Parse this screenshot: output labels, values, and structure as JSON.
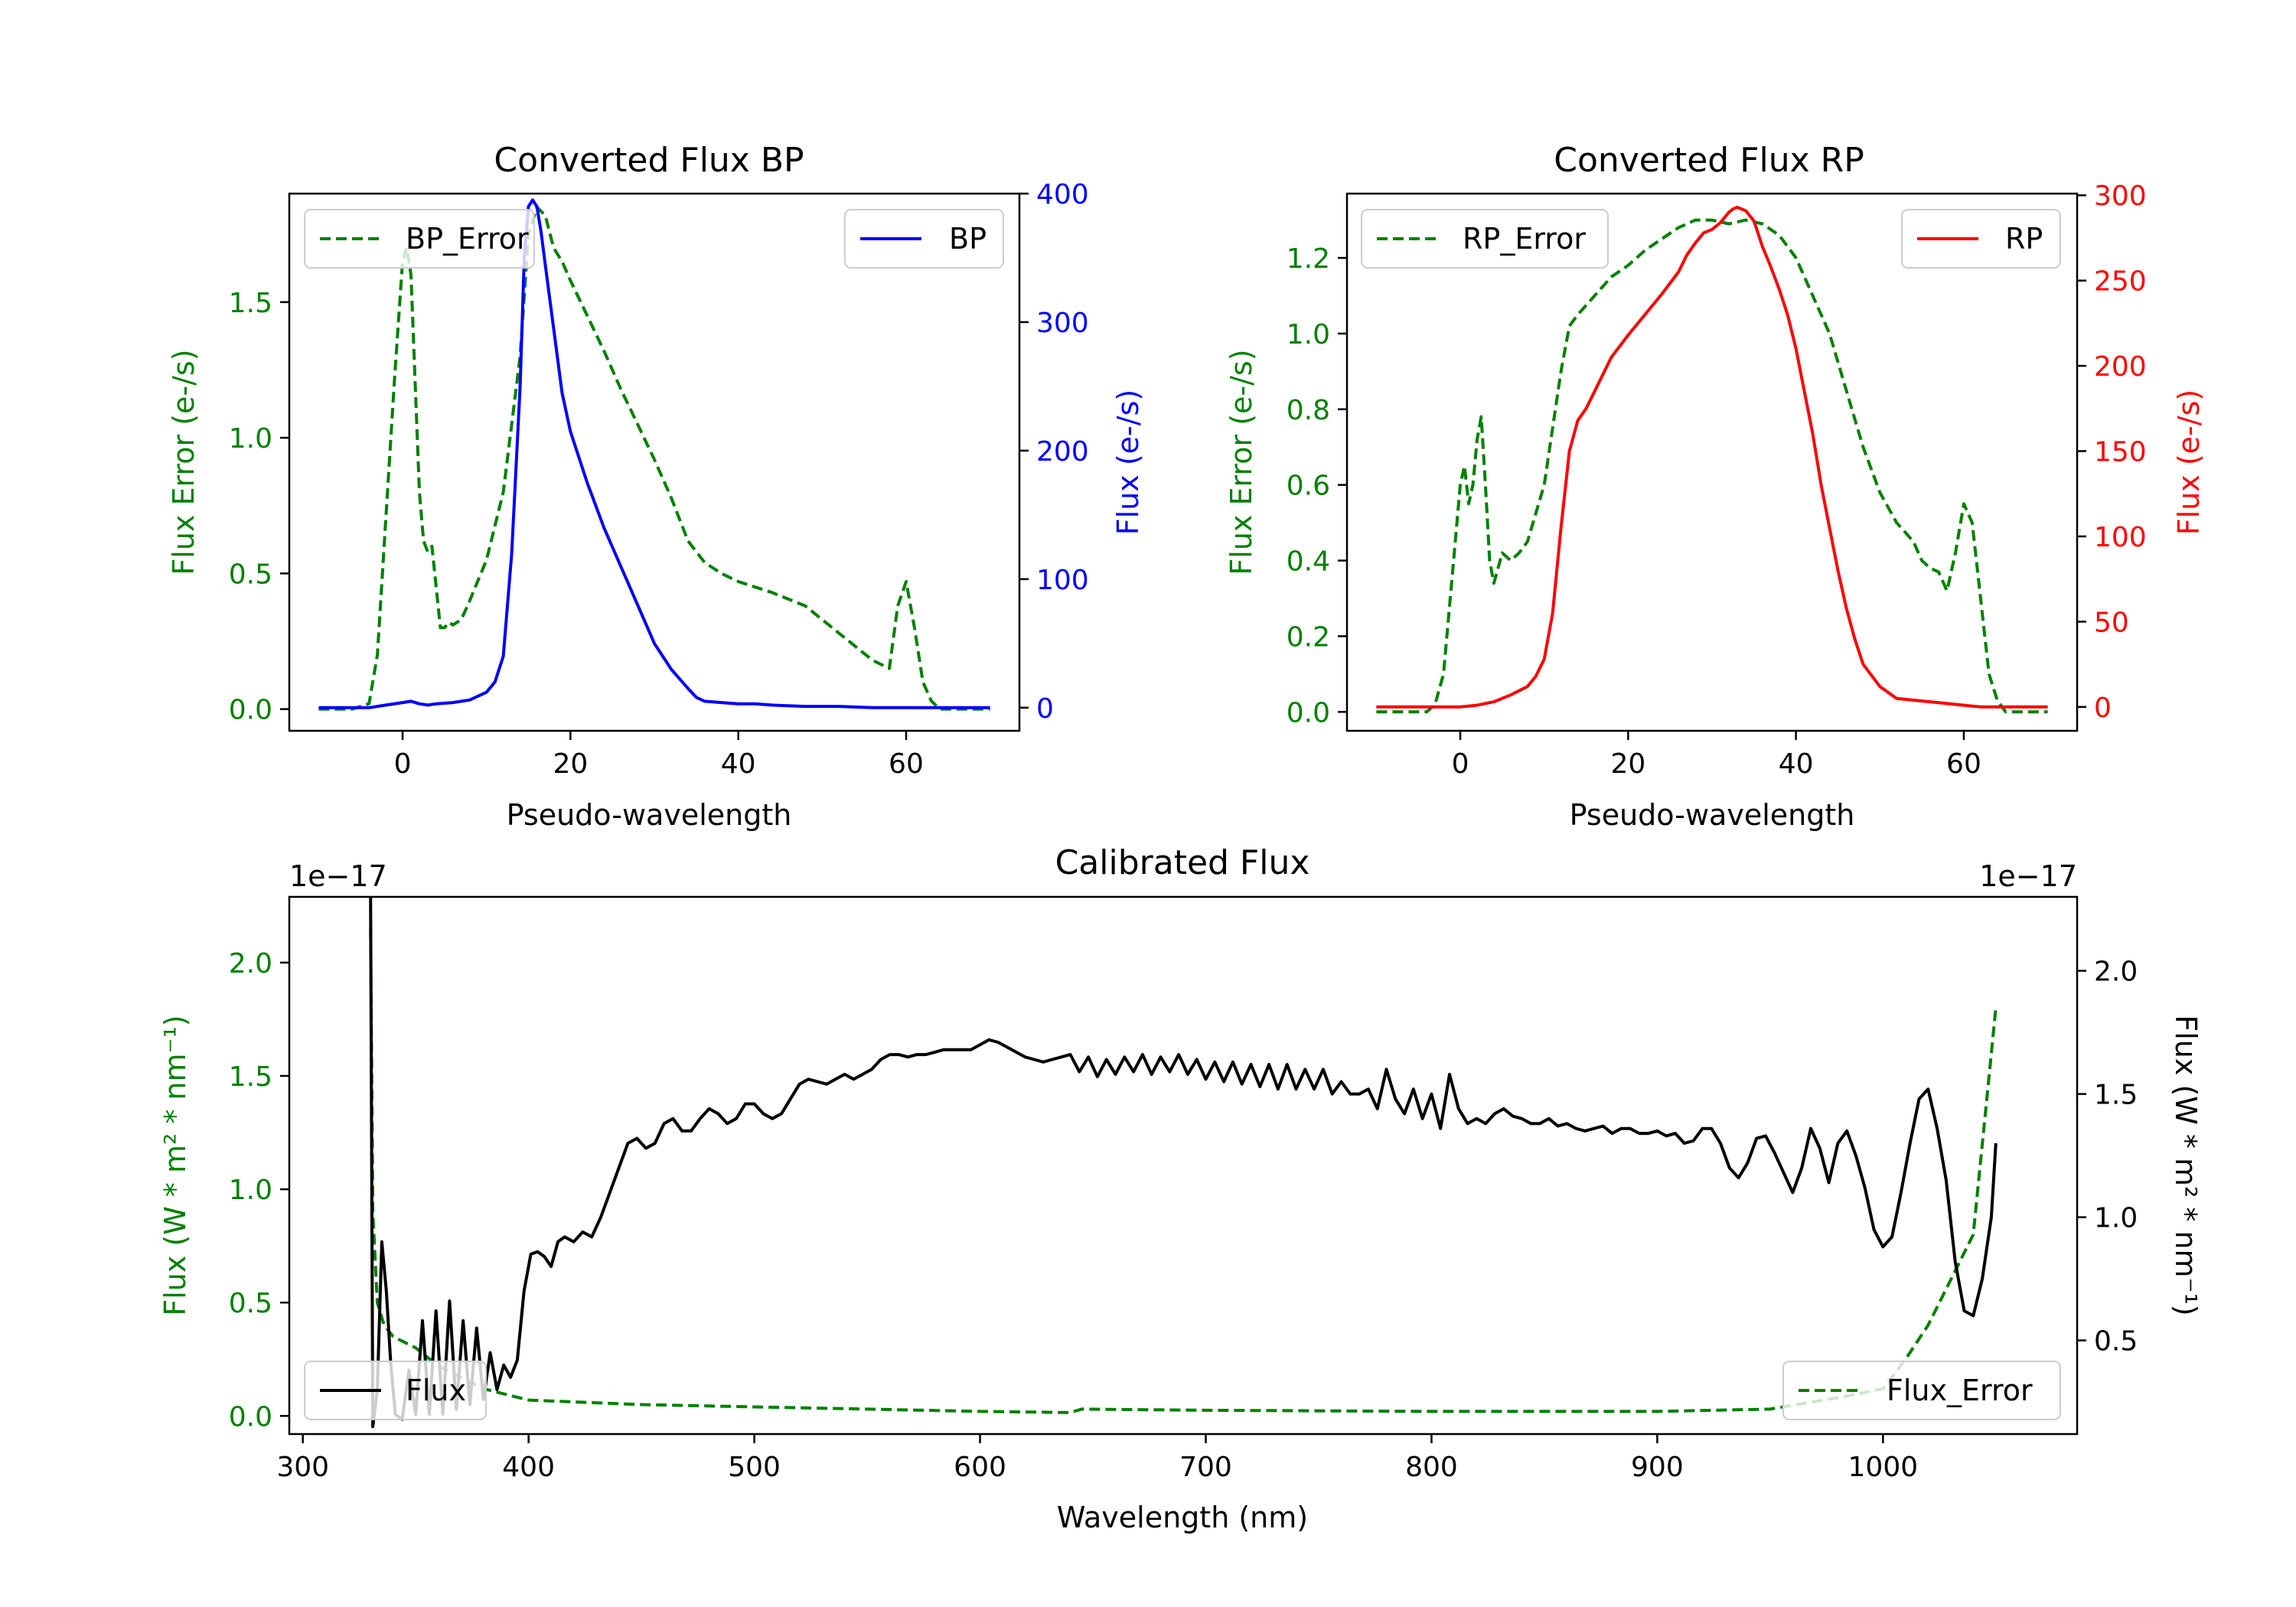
{
  "chart_data": [
    {
      "id": "bp",
      "type": "line",
      "title": "Converted Flux BP",
      "xlabel": "Pseudo-wavelength",
      "ylabel_left": "Flux Error (e-/s)",
      "ylabel_right": "Flux (e-/s)",
      "xlim": [
        -13.5,
        73.5
      ],
      "ylim_left": [
        -0.08,
        1.9
      ],
      "ylim_right": [
        -18,
        400
      ],
      "xticks": [
        0,
        20,
        40,
        60
      ],
      "yticks_left": [
        0.0,
        0.5,
        1.0,
        1.5
      ],
      "yticks_left_labels": [
        "0.0",
        "0.5",
        "1.0",
        "1.5"
      ],
      "yticks_right": [
        0,
        100,
        200,
        300,
        400
      ],
      "yticks_right_labels": [
        "0",
        "100",
        "200",
        "300",
        "400"
      ],
      "colors": {
        "left_axis": "#008000",
        "right_axis": "#0000ff"
      },
      "series": [
        {
          "name": "BP_Error",
          "axis": "left",
          "color": "#008000",
          "dash": true,
          "legend": "top-left",
          "x": [
            -10,
            -6,
            -4,
            -3,
            -2,
            -1,
            0,
            0.5,
            1,
            1.5,
            2,
            2.5,
            3,
            3.5,
            4,
            4.5,
            5,
            5.5,
            6,
            7,
            8,
            10,
            12,
            14,
            15,
            16,
            17,
            18,
            19,
            20,
            22,
            24,
            26,
            28,
            30,
            32,
            34,
            36,
            38,
            40,
            44,
            48,
            52,
            56,
            58,
            59,
            60,
            61,
            62,
            63,
            64,
            66,
            70
          ],
          "values": [
            0.0,
            0.0,
            0.02,
            0.2,
            0.7,
            1.2,
            1.65,
            1.7,
            1.6,
            1.2,
            0.8,
            0.62,
            0.58,
            0.6,
            0.45,
            0.3,
            0.3,
            0.32,
            0.31,
            0.33,
            0.4,
            0.55,
            0.8,
            1.3,
            1.75,
            1.85,
            1.82,
            1.7,
            1.65,
            1.58,
            1.45,
            1.32,
            1.18,
            1.05,
            0.92,
            0.78,
            0.62,
            0.54,
            0.5,
            0.47,
            0.43,
            0.38,
            0.28,
            0.18,
            0.15,
            0.38,
            0.47,
            0.3,
            0.1,
            0.03,
            0.0,
            0.0,
            0.0
          ]
        },
        {
          "name": "BP",
          "axis": "right",
          "color": "#0000ff",
          "dash": false,
          "legend": "top-right",
          "x": [
            -10,
            -4,
            -2,
            0,
            1,
            2,
            3,
            4,
            6,
            8,
            10,
            11,
            12,
            13,
            14,
            14.5,
            15,
            15.5,
            16,
            16.5,
            17,
            18,
            19,
            20,
            22,
            24,
            26,
            28,
            30,
            32,
            34,
            35,
            36,
            38,
            40,
            42,
            44,
            48,
            52,
            56,
            60,
            62,
            64,
            66,
            68,
            70
          ],
          "values": [
            0,
            0,
            2,
            4,
            5,
            3,
            2,
            3,
            4,
            6,
            12,
            20,
            40,
            120,
            250,
            350,
            390,
            395,
            390,
            370,
            345,
            295,
            245,
            215,
            175,
            140,
            110,
            80,
            50,
            30,
            15,
            8,
            5,
            4,
            3,
            3,
            2,
            1,
            1,
            0,
            0,
            0,
            0,
            0,
            0,
            0
          ]
        }
      ]
    },
    {
      "id": "rp",
      "type": "line",
      "title": "Converted Flux RP",
      "xlabel": "Pseudo-wavelength",
      "ylabel_left": "Flux Error (e-/s)",
      "ylabel_right": "Flux (e-/s)",
      "xlim": [
        -13.5,
        73.5
      ],
      "ylim_left": [
        -0.05,
        1.37
      ],
      "ylim_right": [
        -14,
        301
      ],
      "xticks": [
        0,
        20,
        40,
        60
      ],
      "yticks_left": [
        0.0,
        0.2,
        0.4,
        0.6,
        0.8,
        1.0,
        1.2
      ],
      "yticks_left_labels": [
        "0.0",
        "0.2",
        "0.4",
        "0.6",
        "0.8",
        "1.0",
        "1.2"
      ],
      "yticks_right": [
        0,
        50,
        100,
        150,
        200,
        250,
        300
      ],
      "yticks_right_labels": [
        "0",
        "50",
        "100",
        "150",
        "200",
        "250",
        "300"
      ],
      "colors": {
        "left_axis": "#008000",
        "right_axis": "#ff0000"
      },
      "series": [
        {
          "name": "RP_Error",
          "axis": "left",
          "color": "#008000",
          "dash": true,
          "legend": "top-left",
          "x": [
            -10,
            -4,
            -3,
            -2,
            -1,
            0,
            0.5,
            1,
            1.5,
            2,
            2.5,
            3,
            3.5,
            4,
            4.5,
            5,
            6,
            7,
            8,
            10,
            12,
            13,
            14,
            16,
            18,
            20,
            22,
            24,
            26,
            28,
            30,
            32,
            34,
            36,
            38,
            40,
            42,
            44,
            46,
            48,
            50,
            52,
            54,
            55,
            56,
            57,
            58,
            59,
            60,
            61,
            62,
            63,
            64,
            65,
            70
          ],
          "values": [
            0.0,
            0.0,
            0.02,
            0.1,
            0.35,
            0.6,
            0.65,
            0.55,
            0.6,
            0.72,
            0.78,
            0.6,
            0.4,
            0.34,
            0.38,
            0.42,
            0.4,
            0.42,
            0.45,
            0.6,
            0.9,
            1.02,
            1.05,
            1.1,
            1.15,
            1.18,
            1.22,
            1.25,
            1.28,
            1.3,
            1.3,
            1.29,
            1.3,
            1.29,
            1.26,
            1.2,
            1.1,
            1.0,
            0.85,
            0.7,
            0.58,
            0.5,
            0.45,
            0.4,
            0.38,
            0.37,
            0.32,
            0.42,
            0.55,
            0.5,
            0.3,
            0.1,
            0.03,
            0.0,
            0.0
          ]
        },
        {
          "name": "RP",
          "axis": "right",
          "color": "#ff0000",
          "dash": false,
          "legend": "top-right",
          "x": [
            -10,
            -4,
            0,
            2,
            4,
            6,
            8,
            9,
            10,
            11,
            12,
            13,
            14,
            15,
            16,
            18,
            20,
            22,
            24,
            26,
            27,
            28,
            29,
            30,
            31,
            32,
            32.5,
            33,
            33.5,
            34,
            35,
            36,
            37,
            38,
            39,
            40,
            41,
            42,
            43,
            44,
            45,
            46,
            47,
            48,
            50,
            52,
            56,
            60,
            62,
            64,
            66,
            70
          ],
          "values": [
            0,
            0,
            0,
            1,
            3,
            7,
            12,
            18,
            28,
            55,
            105,
            150,
            168,
            175,
            185,
            205,
            218,
            230,
            242,
            255,
            265,
            272,
            278,
            280,
            284,
            290,
            292,
            293,
            292,
            291,
            285,
            270,
            258,
            245,
            230,
            210,
            185,
            160,
            130,
            105,
            80,
            58,
            40,
            25,
            12,
            5,
            3,
            1,
            0,
            0,
            0,
            0
          ]
        }
      ]
    },
    {
      "id": "cal",
      "type": "line",
      "title": "Calibrated Flux",
      "xlabel": "Wavelength (nm)",
      "ylabel_left": "Flux (W * m² * nm⁻¹)",
      "ylabel_right": "Flux (W * m² * nm⁻¹)",
      "offset_left": "1e−17",
      "offset_right": "1e−17",
      "xlim": [
        294,
        1086
      ],
      "ylim_left": [
        -0.08,
        2.29
      ],
      "ylim_right": [
        0.12,
        2.3
      ],
      "xticks": [
        300,
        400,
        500,
        600,
        700,
        800,
        900,
        1000
      ],
      "yticks_left": [
        0.0,
        0.5,
        1.0,
        1.5,
        2.0
      ],
      "yticks_left_labels": [
        "0.0",
        "0.5",
        "1.0",
        "1.5",
        "2.0"
      ],
      "yticks_right": [
        0.5,
        1.0,
        1.5,
        2.0
      ],
      "yticks_right_labels": [
        "0.5",
        "1.0",
        "1.5",
        "2.0"
      ],
      "colors": {
        "left_axis": "#008000",
        "right_axis": "#000000"
      },
      "series": [
        {
          "name": "Flux_Error",
          "axis": "left",
          "color": "#008000",
          "dash": true,
          "legend": "bottom-right",
          "x": [
            330,
            331,
            333,
            336,
            340,
            350,
            360,
            380,
            400,
            450,
            500,
            550,
            600,
            640,
            645,
            700,
            800,
            900,
            950,
            980,
            1000,
            1010,
            1020,
            1030,
            1040,
            1045,
            1050
          ],
          "values": [
            2.15,
            0.9,
            0.5,
            0.4,
            0.35,
            0.3,
            0.22,
            0.12,
            0.07,
            0.05,
            0.04,
            0.03,
            0.02,
            0.015,
            0.03,
            0.025,
            0.02,
            0.02,
            0.03,
            0.08,
            0.12,
            0.25,
            0.4,
            0.6,
            0.8,
            1.3,
            1.8
          ]
        },
        {
          "name": "Flux",
          "axis": "right",
          "color": "#000000",
          "dash": false,
          "legend": "bottom-left",
          "x": [
            330,
            331,
            333,
            335,
            337,
            339,
            341,
            344,
            347,
            350,
            353,
            356,
            359,
            362,
            365,
            368,
            371,
            374,
            377,
            380,
            383,
            386,
            389,
            392,
            395,
            398,
            401,
            404,
            407,
            410,
            413,
            416,
            420,
            424,
            428,
            432,
            436,
            440,
            444,
            448,
            452,
            456,
            460,
            464,
            468,
            472,
            476,
            480,
            484,
            488,
            492,
            496,
            500,
            504,
            508,
            512,
            516,
            520,
            524,
            528,
            532,
            536,
            540,
            544,
            548,
            552,
            556,
            560,
            564,
            568,
            572,
            576,
            580,
            584,
            588,
            592,
            596,
            600,
            604,
            608,
            612,
            616,
            620,
            624,
            628,
            632,
            636,
            640,
            644,
            648,
            652,
            656,
            660,
            664,
            668,
            672,
            676,
            680,
            684,
            688,
            692,
            696,
            700,
            704,
            708,
            712,
            716,
            720,
            724,
            728,
            732,
            736,
            740,
            744,
            748,
            752,
            756,
            760,
            764,
            768,
            772,
            776,
            780,
            784,
            788,
            792,
            796,
            800,
            804,
            808,
            812,
            816,
            820,
            824,
            828,
            832,
            836,
            840,
            844,
            848,
            852,
            856,
            860,
            864,
            868,
            872,
            876,
            880,
            884,
            888,
            892,
            896,
            900,
            904,
            908,
            912,
            916,
            920,
            924,
            928,
            932,
            936,
            940,
            944,
            948,
            952,
            956,
            960,
            964,
            968,
            972,
            976,
            980,
            984,
            988,
            992,
            996,
            1000,
            1004,
            1008,
            1012,
            1016,
            1020,
            1024,
            1028,
            1032,
            1036,
            1040,
            1044,
            1048,
            1050
          ],
          "values": [
            2.3,
            0.15,
            0.3,
            0.9,
            0.7,
            0.4,
            0.2,
            0.18,
            0.38,
            0.2,
            0.58,
            0.2,
            0.62,
            0.2,
            0.66,
            0.22,
            0.58,
            0.24,
            0.55,
            0.26,
            0.45,
            0.3,
            0.4,
            0.35,
            0.42,
            0.7,
            0.85,
            0.86,
            0.84,
            0.8,
            0.9,
            0.92,
            0.9,
            0.94,
            0.92,
            1.0,
            1.1,
            1.2,
            1.3,
            1.32,
            1.28,
            1.3,
            1.38,
            1.4,
            1.35,
            1.35,
            1.4,
            1.44,
            1.42,
            1.38,
            1.4,
            1.46,
            1.46,
            1.42,
            1.4,
            1.42,
            1.48,
            1.54,
            1.56,
            1.55,
            1.54,
            1.56,
            1.58,
            1.56,
            1.58,
            1.6,
            1.64,
            1.66,
            1.66,
            1.65,
            1.66,
            1.66,
            1.67,
            1.68,
            1.68,
            1.68,
            1.68,
            1.7,
            1.72,
            1.71,
            1.69,
            1.67,
            1.65,
            1.64,
            1.63,
            1.64,
            1.65,
            1.66,
            1.59,
            1.65,
            1.57,
            1.64,
            1.58,
            1.65,
            1.59,
            1.66,
            1.58,
            1.65,
            1.59,
            1.66,
            1.58,
            1.64,
            1.56,
            1.63,
            1.55,
            1.63,
            1.54,
            1.62,
            1.53,
            1.62,
            1.52,
            1.62,
            1.52,
            1.6,
            1.52,
            1.6,
            1.5,
            1.55,
            1.5,
            1.5,
            1.52,
            1.44,
            1.6,
            1.48,
            1.42,
            1.52,
            1.4,
            1.5,
            1.36,
            1.58,
            1.44,
            1.38,
            1.4,
            1.38,
            1.42,
            1.44,
            1.41,
            1.4,
            1.38,
            1.38,
            1.4,
            1.37,
            1.38,
            1.36,
            1.35,
            1.36,
            1.37,
            1.34,
            1.36,
            1.36,
            1.34,
            1.34,
            1.35,
            1.33,
            1.34,
            1.3,
            1.31,
            1.36,
            1.36,
            1.3,
            1.2,
            1.16,
            1.22,
            1.32,
            1.33,
            1.26,
            1.18,
            1.1,
            1.2,
            1.36,
            1.28,
            1.14,
            1.3,
            1.35,
            1.25,
            1.12,
            0.95,
            0.88,
            0.92,
            1.1,
            1.3,
            1.48,
            1.52,
            1.36,
            1.15,
            0.82,
            0.62,
            0.6,
            0.75,
            1.0,
            1.3
          ]
        }
      ]
    }
  ]
}
